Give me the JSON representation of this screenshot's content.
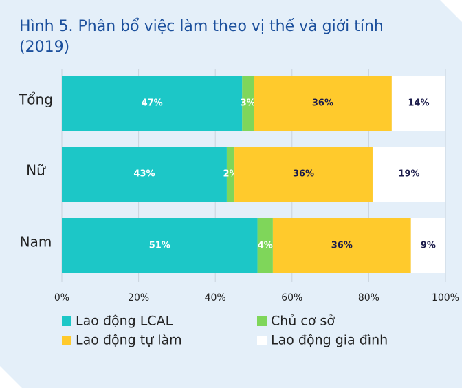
{
  "chart_data": {
    "type": "stacked-bar-horizontal",
    "title": "Hình 5. Phân bổ việc làm theo vị thế và giới tính (2019)",
    "categories": [
      "Tổng",
      "Nữ",
      "Nam"
    ],
    "series": [
      {
        "name": "Lao động LCAL",
        "color": "#1cc7c7",
        "values": [
          47,
          43,
          51
        ],
        "value_labels": [
          "47%",
          "43%",
          "51%"
        ]
      },
      {
        "name": "Chủ cơ sở",
        "color": "#7fd65a",
        "values": [
          3,
          2,
          4
        ],
        "value_labels": [
          "3%",
          "2%",
          "4%"
        ]
      },
      {
        "name": "Lao động tự làm",
        "color": "#ffca2c",
        "values": [
          36,
          36,
          36
        ],
        "value_labels": [
          "36%",
          "36%",
          "36%"
        ]
      },
      {
        "name": "Lao động gia đình",
        "color": "#ffffff",
        "values": [
          14,
          19,
          9
        ],
        "value_labels": [
          "14%",
          "19%",
          "9%"
        ]
      }
    ],
    "xlim": [
      0,
      100
    ],
    "xticks": [
      {
        "value": 0,
        "label": "0%"
      },
      {
        "value": 20,
        "label": "20%"
      },
      {
        "value": 40,
        "label": "40%"
      },
      {
        "value": 60,
        "label": "60%"
      },
      {
        "value": 80,
        "label": "80%"
      },
      {
        "value": 100,
        "label": "100%"
      }
    ],
    "grid": true
  }
}
